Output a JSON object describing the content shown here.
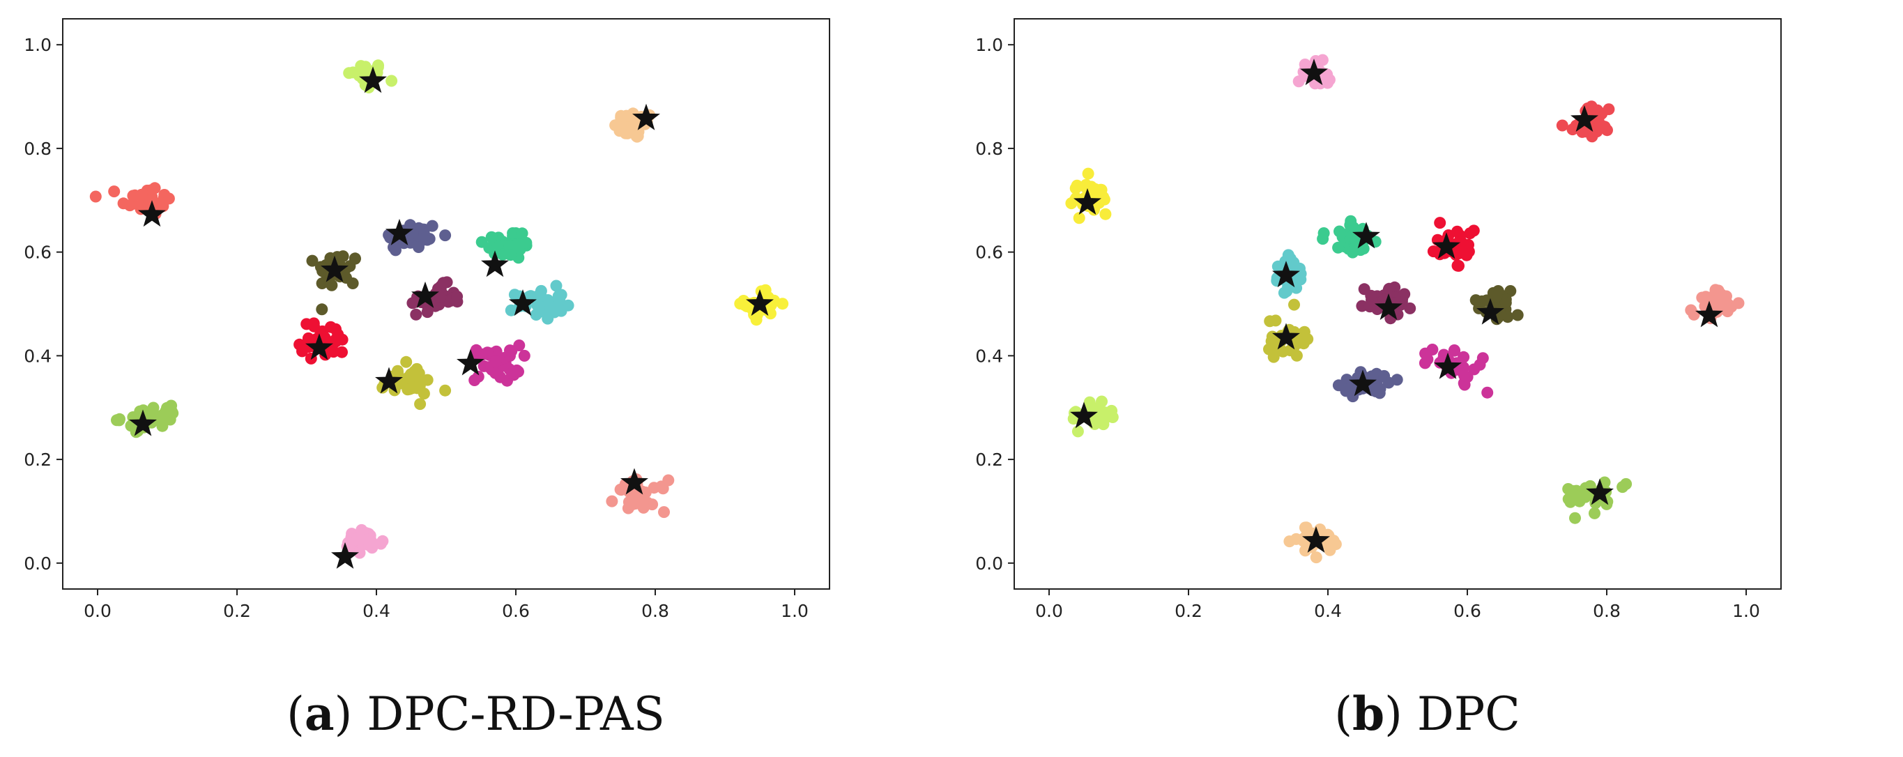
{
  "captions": [
    {
      "letter": "a",
      "text": "DPC-RD-PAS"
    },
    {
      "letter": "b",
      "text": "DPC"
    }
  ],
  "chart_data": [
    {
      "type": "scatter",
      "title": "",
      "xlim": [
        -0.05,
        1.05
      ],
      "ylim": [
        -0.05,
        1.05
      ],
      "xticks": [
        "0.0",
        "0.2",
        "0.4",
        "0.6",
        "0.8",
        "1.0"
      ],
      "yticks": [
        "0.0",
        "0.2",
        "0.4",
        "0.6",
        "0.8",
        "1.0"
      ],
      "grid": false,
      "marker_color": "#111111",
      "clusters": [
        {
          "color": "#c8f06a",
          "cx": 0.385,
          "cy": 0.94,
          "rx": 0.022,
          "ry": 0.022,
          "star": [
            0.395,
            0.93
          ]
        },
        {
          "color": "#f7c893",
          "cx": 0.77,
          "cy": 0.845,
          "rx": 0.024,
          "ry": 0.022,
          "star": [
            0.787,
            0.858
          ]
        },
        {
          "color": "#f4665f",
          "cx": 0.07,
          "cy": 0.7,
          "rx": 0.03,
          "ry": 0.025,
          "star": [
            0.078,
            0.672
          ]
        },
        {
          "color": "#5e5f90",
          "cx": 0.45,
          "cy": 0.63,
          "rx": 0.035,
          "ry": 0.025,
          "star": [
            0.433,
            0.636
          ]
        },
        {
          "color": "#3bcb8f",
          "cx": 0.59,
          "cy": 0.615,
          "rx": 0.03,
          "ry": 0.025,
          "star": [
            0.57,
            0.575
          ]
        },
        {
          "color": "#5d5a2a",
          "cx": 0.345,
          "cy": 0.565,
          "rx": 0.025,
          "ry": 0.03,
          "star": [
            0.34,
            0.565
          ]
        },
        {
          "color": "#8b3163",
          "cx": 0.485,
          "cy": 0.51,
          "rx": 0.03,
          "ry": 0.022,
          "star": [
            0.47,
            0.515
          ]
        },
        {
          "color": "#62cacb",
          "cx": 0.635,
          "cy": 0.5,
          "rx": 0.028,
          "ry": 0.025,
          "star": [
            0.61,
            0.5
          ]
        },
        {
          "color": "#f8f03a",
          "cx": 0.955,
          "cy": 0.5,
          "rx": 0.022,
          "ry": 0.022,
          "star": [
            0.95,
            0.5
          ]
        },
        {
          "color": "#ee1033",
          "cx": 0.325,
          "cy": 0.43,
          "rx": 0.028,
          "ry": 0.03,
          "star": [
            0.318,
            0.415
          ]
        },
        {
          "color": "#cc3399",
          "cx": 0.57,
          "cy": 0.385,
          "rx": 0.03,
          "ry": 0.03,
          "star": [
            0.535,
            0.385
          ]
        },
        {
          "color": "#c3c13a",
          "cx": 0.445,
          "cy": 0.35,
          "rx": 0.032,
          "ry": 0.025,
          "star": [
            0.418,
            0.35
          ]
        },
        {
          "color": "#9ccc58",
          "cx": 0.075,
          "cy": 0.28,
          "rx": 0.035,
          "ry": 0.018,
          "star": [
            0.065,
            0.268
          ]
        },
        {
          "color": "#f3968f",
          "cx": 0.78,
          "cy": 0.13,
          "rx": 0.03,
          "ry": 0.025,
          "star": [
            0.77,
            0.155
          ]
        },
        {
          "color": "#f5a5d1",
          "cx": 0.38,
          "cy": 0.04,
          "rx": 0.025,
          "ry": 0.02,
          "star": [
            0.355,
            0.012
          ]
        }
      ]
    },
    {
      "type": "scatter",
      "title": "",
      "xlim": [
        -0.05,
        1.05
      ],
      "ylim": [
        -0.05,
        1.05
      ],
      "xticks": [
        "0.0",
        "0.2",
        "0.4",
        "0.6",
        "0.8",
        "1.0"
      ],
      "yticks": [
        "0.0",
        "0.2",
        "0.4",
        "0.6",
        "0.8",
        "1.0"
      ],
      "grid": false,
      "marker_color": "#111111",
      "clusters": [
        {
          "color": "#f5a5d1",
          "cx": 0.385,
          "cy": 0.945,
          "rx": 0.022,
          "ry": 0.022,
          "star": [
            0.38,
            0.945
          ]
        },
        {
          "color": "#ee4a52",
          "cx": 0.77,
          "cy": 0.85,
          "rx": 0.025,
          "ry": 0.022,
          "star": [
            0.768,
            0.855
          ]
        },
        {
          "color": "#f8ec3a",
          "cx": 0.06,
          "cy": 0.7,
          "rx": 0.025,
          "ry": 0.028,
          "star": [
            0.055,
            0.695
          ]
        },
        {
          "color": "#3bcb8f",
          "cx": 0.435,
          "cy": 0.63,
          "rx": 0.03,
          "ry": 0.025,
          "star": [
            0.455,
            0.63
          ]
        },
        {
          "color": "#ee1033",
          "cx": 0.58,
          "cy": 0.61,
          "rx": 0.025,
          "ry": 0.025,
          "star": [
            0.57,
            0.61
          ]
        },
        {
          "color": "#62cacb",
          "cx": 0.345,
          "cy": 0.555,
          "rx": 0.022,
          "ry": 0.028,
          "star": [
            0.34,
            0.555
          ]
        },
        {
          "color": "#8b3163",
          "cx": 0.49,
          "cy": 0.505,
          "rx": 0.03,
          "ry": 0.022,
          "star": [
            0.487,
            0.492
          ]
        },
        {
          "color": "#5d5a2a",
          "cx": 0.64,
          "cy": 0.495,
          "rx": 0.028,
          "ry": 0.025,
          "star": [
            0.633,
            0.483
          ]
        },
        {
          "color": "#f3968f",
          "cx": 0.955,
          "cy": 0.5,
          "rx": 0.022,
          "ry": 0.022,
          "star": [
            0.947,
            0.478
          ]
        },
        {
          "color": "#c3c13a",
          "cx": 0.34,
          "cy": 0.435,
          "rx": 0.03,
          "ry": 0.03,
          "star": [
            0.34,
            0.435
          ]
        },
        {
          "color": "#cc3399",
          "cx": 0.58,
          "cy": 0.385,
          "rx": 0.03,
          "ry": 0.028,
          "star": [
            0.572,
            0.378
          ]
        },
        {
          "color": "#5e5f90",
          "cx": 0.455,
          "cy": 0.345,
          "rx": 0.028,
          "ry": 0.022,
          "star": [
            0.45,
            0.345
          ]
        },
        {
          "color": "#c8f06a",
          "cx": 0.065,
          "cy": 0.285,
          "rx": 0.033,
          "ry": 0.018,
          "star": [
            0.05,
            0.283
          ]
        },
        {
          "color": "#9ccc58",
          "cx": 0.78,
          "cy": 0.13,
          "rx": 0.03,
          "ry": 0.025,
          "star": [
            0.79,
            0.135
          ]
        },
        {
          "color": "#f7c893",
          "cx": 0.385,
          "cy": 0.045,
          "rx": 0.025,
          "ry": 0.02,
          "star": [
            0.383,
            0.043
          ]
        }
      ]
    }
  ]
}
